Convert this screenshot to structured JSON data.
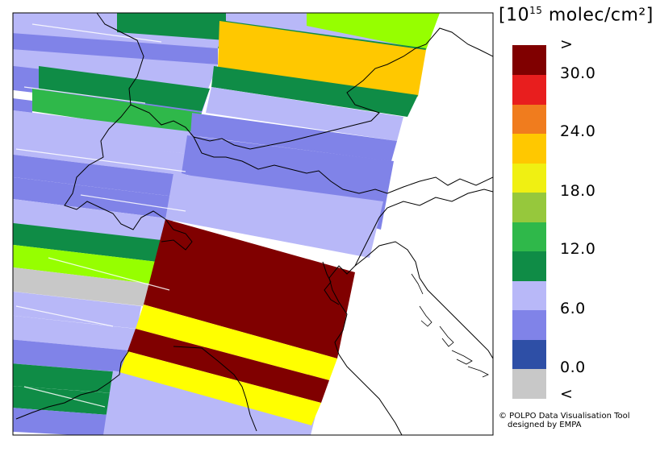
{
  "legend": {
    "title_prefix": "[10",
    "title_exponent": "15",
    "title_suffix": " molec/cm²]",
    "colors": [
      "#c8c8c8",
      "#2e4fa6",
      "#8083e8",
      "#b8b8f8",
      "#0f8c46",
      "#2fb84a",
      "#96c83c",
      "#f0f012",
      "#ffc800",
      "#f07c1e",
      "#e81e1e",
      "#800000"
    ],
    "tick_labels": {
      "top": ">",
      "t30": "30.0",
      "t24": "24.0",
      "t18": "18.0",
      "t12": "12.0",
      "t6": "6.0",
      "t0": "0.0",
      "bottom": "<"
    }
  },
  "credit": {
    "line1": "© POLPO Data Visualisation Tool",
    "line2": "designed by EMPA"
  }
}
